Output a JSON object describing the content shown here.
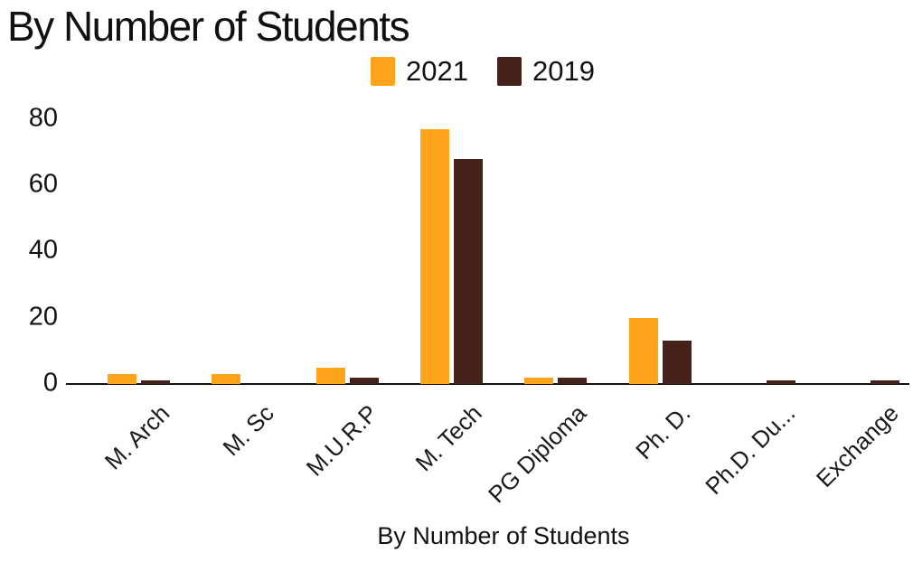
{
  "header": {
    "title": "By Number of Students"
  },
  "legend": {
    "items": [
      {
        "label": "2021",
        "color": "#FFA41B"
      },
      {
        "label": "2019",
        "color": "#45211A"
      }
    ]
  },
  "axes": {
    "x_title": "By Number of Students",
    "yticks": [
      "0",
      "20",
      "40",
      "60",
      "80"
    ]
  },
  "colors": {
    "series_2021": "#FFA41B",
    "series_2019": "#45211A",
    "axis": "#131313",
    "text": "#1a1a1a",
    "background": "#ffffff"
  },
  "chart_data": {
    "type": "bar",
    "title": "By Number of Students",
    "categories": [
      "M. Arch",
      "M. Sc",
      "M.U.R.P",
      "M. Tech",
      "PG Diploma",
      "Ph. D.",
      "Ph.D. Du...",
      "Exchange"
    ],
    "series": [
      {
        "name": "2021",
        "color": "#FFA41B",
        "values": [
          3,
          3,
          5,
          77,
          2,
          20,
          0,
          0
        ]
      },
      {
        "name": "2019",
        "color": "#45211A",
        "values": [
          1,
          0,
          2,
          68,
          2,
          13,
          1,
          1
        ]
      }
    ],
    "xlabel": "By Number of Students",
    "ylabel": "",
    "ylim": [
      0,
      80
    ],
    "yticks": [
      0,
      20,
      40,
      60,
      80
    ],
    "grid": false,
    "legend_position": "top",
    "bar_orientation": "vertical"
  }
}
